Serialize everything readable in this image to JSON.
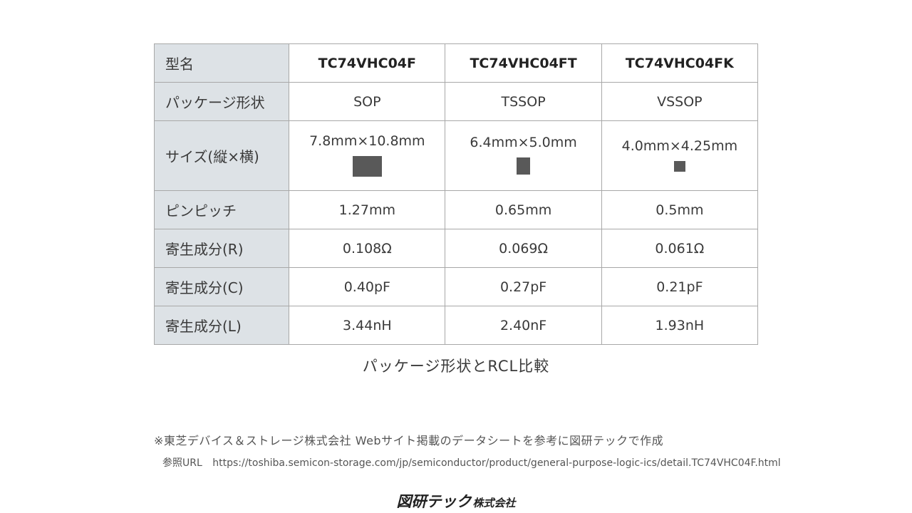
{
  "table": {
    "header": {
      "label": "型名",
      "models": [
        "TC74VHC04F",
        "TC74VHC04FT",
        "TC74VHC04FK"
      ]
    },
    "package": {
      "label": "パッケージ形状",
      "values": [
        "SOP",
        "TSSOP",
        "VSSOP"
      ]
    },
    "size": {
      "label": "サイズ(縦×横)",
      "values": [
        "7.8mm×10.8mm",
        "6.4mm×5.0mm",
        "4.0mm×4.25mm"
      ]
    },
    "pitch": {
      "label": "ピンピッチ",
      "values": [
        "1.27mm",
        "0.65mm",
        "0.5mm"
      ]
    },
    "resistance": {
      "label": "寄生成分(R)",
      "values": [
        "0.108Ω",
        "0.069Ω",
        "0.061Ω"
      ]
    },
    "capacitance": {
      "label": "寄生成分(C)",
      "values": [
        "0.40pF",
        "0.27pF",
        "0.21pF"
      ]
    },
    "inductance": {
      "label": "寄生成分(L)",
      "values": [
        "3.44nH",
        "2.40nF",
        "1.93nH"
      ]
    }
  },
  "caption": "パッケージ形状とRCL比較",
  "note": "※東芝デバイス＆ストレージ株式会社 Webサイト掲載のデータシートを参考に図研テックで作成",
  "reference": {
    "label": "参照URL",
    "url": "https://toshiba.semicon-storage.com/jp/semiconductor/product/general-purpose-logic-ics/detail.TC74VHC04F.html"
  },
  "logo": {
    "main": "図研テック",
    "sub": "株式会社"
  },
  "colors": {
    "header_bg": "#dde2e6",
    "border": "#a8a8a8",
    "chip": "#595959"
  }
}
